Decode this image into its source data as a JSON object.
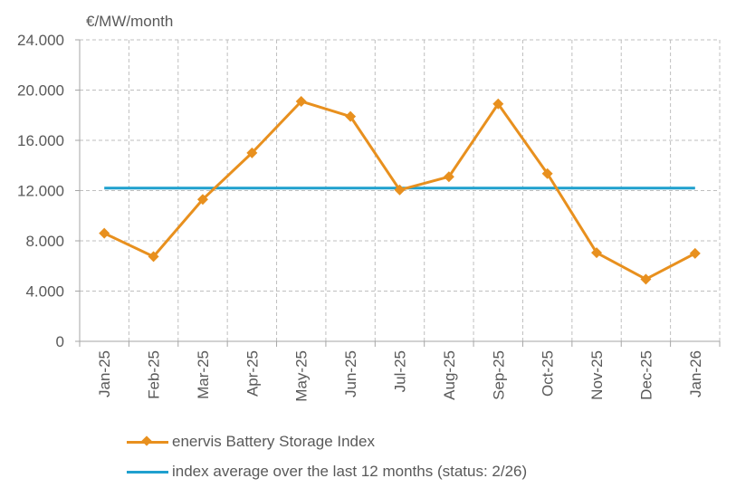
{
  "chart_data": {
    "type": "line",
    "ylabel": "€/MW/month",
    "ylim": [
      0,
      24000
    ],
    "yticks": [
      0,
      4000,
      8000,
      12000,
      16000,
      20000,
      24000
    ],
    "ytick_labels": [
      "0",
      "4.000",
      "8.000",
      "12.000",
      "16.000",
      "20.000",
      "24.000"
    ],
    "categories": [
      "Jan-25",
      "Feb-25",
      "Mar-25",
      "Apr-25",
      "May-25",
      "Jun-25",
      "Jul-25",
      "Aug-25",
      "Sep-25",
      "Oct-25",
      "Nov-25",
      "Dec-25",
      "Jan-26"
    ],
    "grid": true,
    "series": [
      {
        "name": "enervis Battery Storage Index",
        "color": "#E8901E",
        "marker": "diamond",
        "values": [
          8600,
          6750,
          11300,
          15000,
          19100,
          17900,
          12050,
          13100,
          18900,
          13350,
          7050,
          4950,
          7000
        ]
      },
      {
        "name": "index average over the last 12 months (status: 2/26)",
        "color": "#1FA0CE",
        "marker": "none",
        "values": [
          12200,
          12200,
          12200,
          12200,
          12200,
          12200,
          12200,
          12200,
          12200,
          12200,
          12200,
          12200,
          12200
        ]
      }
    ],
    "legend_position": "bottom"
  }
}
